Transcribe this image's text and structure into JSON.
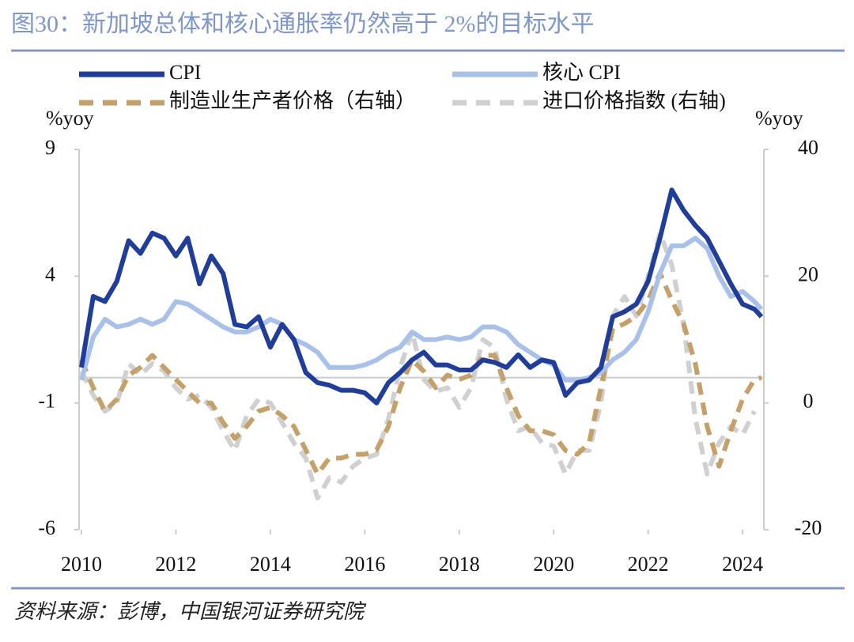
{
  "chart_data": {
    "type": "line",
    "title": "图30：新加坡总体和核心通胀率仍然高于 2%的目标水平",
    "source": "资料来源：彭博，中国银河证券研究院",
    "y_label": "%yoy",
    "y2_label": "%yoy",
    "x": [
      2010,
      2010.25,
      2010.5,
      2010.75,
      2011,
      2011.25,
      2011.5,
      2011.75,
      2012,
      2012.25,
      2012.5,
      2012.75,
      2013,
      2013.25,
      2013.5,
      2013.75,
      2014,
      2014.25,
      2014.5,
      2014.75,
      2015,
      2015.25,
      2015.5,
      2015.75,
      2016,
      2016.25,
      2016.5,
      2016.75,
      2017,
      2017.25,
      2017.5,
      2017.75,
      2018,
      2018.25,
      2018.5,
      2018.75,
      2019,
      2019.25,
      2019.5,
      2019.75,
      2020,
      2020.25,
      2020.5,
      2020.75,
      2021,
      2021.25,
      2021.5,
      2021.75,
      2022,
      2022.25,
      2022.5,
      2022.75,
      2023,
      2023.25,
      2023.5,
      2023.75,
      2024,
      2024.25,
      2024.4
    ],
    "xlim": [
      2009.95,
      2024.45
    ],
    "xticks": [
      2010,
      2012,
      2014,
      2016,
      2018,
      2020,
      2022,
      2024
    ],
    "ylim": [
      -6,
      9
    ],
    "yticks": [
      -6,
      -1,
      4,
      9
    ],
    "y2lim": [
      -20,
      40
    ],
    "y2ticks": [
      -20,
      0,
      20,
      40
    ],
    "series": [
      {
        "name": "CPI",
        "color": "#1f3d99",
        "dashed": false,
        "values": [
          0.4,
          3.2,
          3.0,
          3.8,
          5.4,
          4.9,
          5.7,
          5.5,
          4.8,
          5.5,
          3.7,
          4.8,
          4.1,
          2.1,
          2.0,
          2.4,
          1.2,
          2.1,
          1.5,
          0.2,
          -0.2,
          -0.3,
          -0.5,
          -0.5,
          -0.6,
          -1.0,
          -0.2,
          0.2,
          0.7,
          1.0,
          0.5,
          0.5,
          0.3,
          0.3,
          0.7,
          0.6,
          0.4,
          0.9,
          0.4,
          0.7,
          0.6,
          -0.7,
          -0.2,
          -0.1,
          0.4,
          2.4,
          2.6,
          2.9,
          3.8,
          5.5,
          7.4,
          6.6,
          6.0,
          5.5,
          4.6,
          3.7,
          2.9,
          2.7,
          2.4
        ]
      },
      {
        "name": "核心 CPI",
        "color": "#a9c0e8",
        "dashed": false,
        "values": [
          -0.1,
          1.6,
          2.3,
          2.0,
          2.1,
          2.3,
          2.1,
          2.3,
          3.0,
          2.9,
          2.6,
          2.3,
          2.0,
          1.8,
          1.8,
          2.0,
          2.3,
          2.1,
          1.5,
          1.3,
          1.0,
          0.4,
          0.4,
          0.4,
          0.5,
          0.7,
          1.0,
          1.2,
          1.8,
          1.5,
          1.5,
          1.6,
          1.5,
          1.6,
          2.0,
          2.0,
          1.8,
          1.3,
          1.0,
          0.7,
          0.5,
          -0.1,
          -0.1,
          0.0,
          0.2,
          0.7,
          1.0,
          1.5,
          2.6,
          4.1,
          5.2,
          5.2,
          5.5,
          5.1,
          4.0,
          3.2,
          3.4,
          3.0,
          2.7
        ]
      },
      {
        "name": "制造业生产者价格（右轴）",
        "color": "#c4a06a",
        "dashed": true,
        "axis": "y2",
        "values": [
          6.8,
          2.4,
          -1.3,
          0.6,
          4.4,
          5.6,
          7.5,
          5.6,
          3.7,
          1.8,
          0,
          0,
          -3.1,
          -5.6,
          -3.7,
          -1.3,
          -0.7,
          -2.0,
          -3.7,
          -7.4,
          -11.2,
          -8.7,
          -8.7,
          -8.1,
          -8.1,
          -7.4,
          -3.7,
          2.4,
          6.8,
          5.0,
          2.4,
          4.4,
          3.7,
          4.4,
          7.5,
          7.5,
          2.4,
          -2.0,
          -4.4,
          -4.4,
          -5.0,
          -7.5,
          -8.1,
          -6.3,
          2.4,
          11.8,
          12.5,
          13.7,
          16.2,
          20.5,
          16.2,
          12.5,
          6.2,
          -3.7,
          -10.0,
          -4.4,
          0.6,
          3.7,
          4.0
        ]
      },
      {
        "name": "进口价格指数 (右轴)",
        "color": "#d0d0d0",
        "dashed": true,
        "axis": "y2",
        "values": [
          5.0,
          1.2,
          -1.3,
          0,
          6.2,
          4.4,
          6.2,
          5.0,
          2.4,
          0.6,
          1.2,
          -0.7,
          -4.4,
          -7.5,
          -2.0,
          0.6,
          0,
          -3.1,
          -6.3,
          -8.7,
          -15.0,
          -11.8,
          -12.5,
          -10.0,
          -8.7,
          -8.1,
          -2.5,
          5.6,
          11.2,
          3.7,
          1.8,
          2.4,
          -0.7,
          2.4,
          10.0,
          8.7,
          0.6,
          -4.4,
          -3.7,
          -6.3,
          -6.8,
          -11.2,
          -7.5,
          -7.5,
          0,
          13.7,
          16.8,
          13.7,
          20.0,
          26.8,
          21.8,
          12.5,
          -2.5,
          -11.2,
          -6.3,
          -3.7,
          -5.0,
          -1.3,
          null
        ]
      }
    ]
  }
}
